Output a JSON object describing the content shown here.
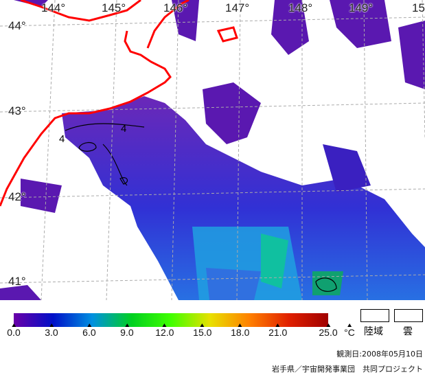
{
  "map": {
    "longitude_labels": [
      "144°",
      "145°",
      "146°",
      "147°",
      "148°",
      "149°",
      "15"
    ],
    "latitude_labels": [
      "44°",
      "43°",
      "42°",
      "41°"
    ],
    "contour_labels": [
      "4",
      "4"
    ],
    "coastline_color": "#ff0000"
  },
  "legend": {
    "ticks": [
      "0.0",
      "3.0",
      "6.0",
      "9.0",
      "12.0",
      "15.0",
      "18.0",
      "21.0",
      "25.0"
    ],
    "tick_values": [
      0,
      3,
      6,
      9,
      12,
      15,
      18,
      21,
      25
    ],
    "range": [
      0,
      25
    ],
    "unit": "°C",
    "colors": [
      "#6a00a8",
      "#0010c8",
      "#0090e0",
      "#00d020",
      "#40ff00",
      "#e8e000",
      "#ff8000",
      "#e02000",
      "#a00000"
    ],
    "land_label": "陸域",
    "cloud_label": "雲"
  },
  "observation_date": "観測日:2008年05月10日",
  "credit": "岩手県／宇宙開発事業団　共同プロジェクト"
}
